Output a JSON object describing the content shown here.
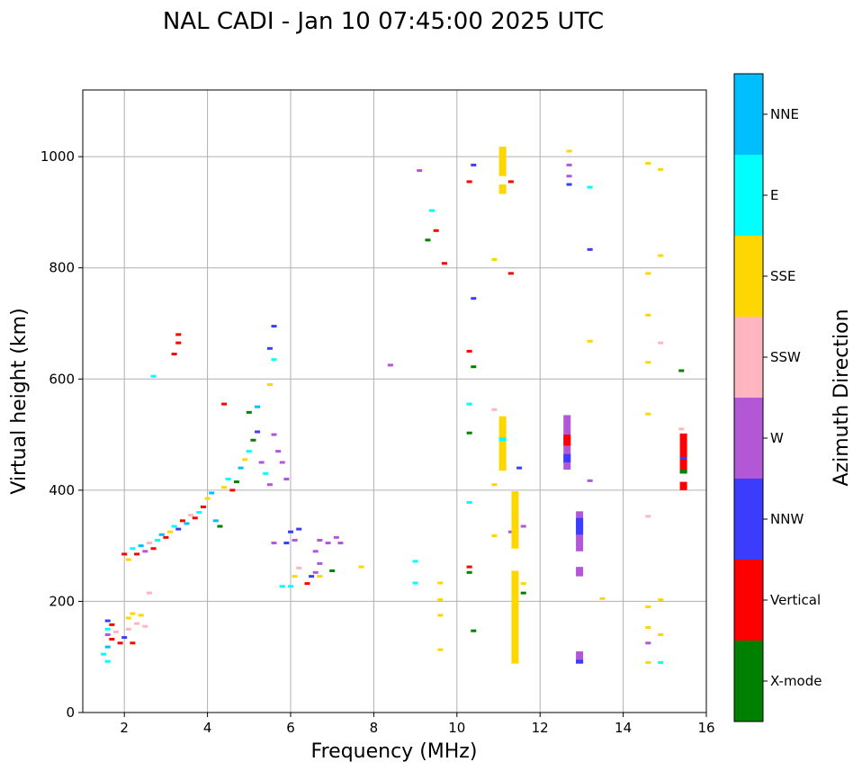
{
  "chart_data": {
    "type": "scatter",
    "title": "NAL CADI - Jan 10 07:45:00 2025 UTC",
    "xlabel": "Frequency (MHz)",
    "ylabel": "Virtual height (km)",
    "xlim": [
      1,
      16
    ],
    "ylim": [
      0,
      1120
    ],
    "xticks": [
      2,
      4,
      6,
      8,
      10,
      12,
      14,
      16
    ],
    "yticks": [
      0,
      200,
      400,
      600,
      800,
      1000
    ],
    "grid": true,
    "colorbar": {
      "title": "Azimuth Direction",
      "categories": [
        {
          "name": "X-mode",
          "color": "#008000"
        },
        {
          "name": "Vertical",
          "color": "#ff0000"
        },
        {
          "name": "NNW",
          "color": "#3c3cff"
        },
        {
          "name": "W",
          "color": "#b258d6"
        },
        {
          "name": "SSW",
          "color": "#ffb6c1"
        },
        {
          "name": "SSE",
          "color": "#ffd700"
        },
        {
          "name": "E",
          "color": "#00ffff"
        },
        {
          "name": "NNE",
          "color": "#00bfff"
        }
      ]
    },
    "points": [
      [
        1.6,
        165,
        "NNW"
      ],
      [
        1.7,
        158,
        "Vertical"
      ],
      [
        1.6,
        150,
        "E"
      ],
      [
        1.8,
        145,
        "SSW"
      ],
      [
        1.6,
        140,
        "W"
      ],
      [
        1.7,
        132,
        "Vertical"
      ],
      [
        1.9,
        125,
        "Vertical"
      ],
      [
        1.6,
        118,
        "NNE"
      ],
      [
        1.5,
        105,
        "E"
      ],
      [
        1.6,
        92,
        "E"
      ],
      [
        2.0,
        135,
        "NNW"
      ],
      [
        2.2,
        125,
        "Vertical"
      ],
      [
        2.1,
        150,
        "SSW"
      ],
      [
        2.3,
        160,
        "SSW"
      ],
      [
        2.5,
        155,
        "SSW"
      ],
      [
        2.1,
        170,
        "SSE"
      ],
      [
        2.2,
        178,
        "SSE"
      ],
      [
        2.4,
        175,
        "SSE"
      ],
      [
        2.6,
        215,
        "SSW"
      ],
      [
        2.0,
        285,
        "Vertical"
      ],
      [
        2.1,
        275,
        "SSE"
      ],
      [
        2.2,
        295,
        "E"
      ],
      [
        2.3,
        285,
        "Vertical"
      ],
      [
        2.4,
        300,
        "NNE"
      ],
      [
        2.5,
        290,
        "W"
      ],
      [
        2.6,
        305,
        "SSW"
      ],
      [
        2.7,
        295,
        "Vertical"
      ],
      [
        2.8,
        310,
        "E"
      ],
      [
        2.9,
        320,
        "NNE"
      ],
      [
        3.0,
        315,
        "Vertical"
      ],
      [
        3.1,
        325,
        "SSE"
      ],
      [
        3.2,
        335,
        "E"
      ],
      [
        3.3,
        330,
        "NNW"
      ],
      [
        3.4,
        345,
        "Vertical"
      ],
      [
        3.5,
        340,
        "NNE"
      ],
      [
        3.6,
        355,
        "SSW"
      ],
      [
        3.7,
        350,
        "Vertical"
      ],
      [
        3.8,
        360,
        "E"
      ],
      [
        2.7,
        605,
        "E"
      ],
      [
        3.3,
        680,
        "Vertical"
      ],
      [
        3.3,
        665,
        "Vertical"
      ],
      [
        3.2,
        645,
        "Vertical"
      ],
      [
        3.9,
        370,
        "Vertical"
      ],
      [
        4.0,
        385,
        "SSE"
      ],
      [
        4.1,
        395,
        "NNE"
      ],
      [
        4.2,
        345,
        "NNE"
      ],
      [
        4.3,
        335,
        "Green"
      ],
      [
        4.4,
        405,
        "SSE"
      ],
      [
        4.5,
        420,
        "E"
      ],
      [
        4.6,
        400,
        "Vertical"
      ],
      [
        4.7,
        415,
        "Green"
      ],
      [
        4.8,
        440,
        "NNE"
      ],
      [
        4.9,
        455,
        "SSE"
      ],
      [
        5.0,
        470,
        "E"
      ],
      [
        5.1,
        490,
        "Green"
      ],
      [
        5.2,
        505,
        "NNW"
      ],
      [
        5.3,
        450,
        "W"
      ],
      [
        5.4,
        430,
        "E"
      ],
      [
        5.5,
        410,
        "W"
      ],
      [
        5.6,
        500,
        "W"
      ],
      [
        5.7,
        470,
        "W"
      ],
      [
        5.8,
        450,
        "W"
      ],
      [
        5.9,
        420,
        "W"
      ],
      [
        4.4,
        555,
        "Vertical"
      ],
      [
        5.0,
        540,
        "Green"
      ],
      [
        5.2,
        550,
        "NNE"
      ],
      [
        5.5,
        590,
        "SSE"
      ],
      [
        5.6,
        695,
        "NNW"
      ],
      [
        5.6,
        635,
        "E"
      ],
      [
        5.5,
        655,
        "NNW"
      ],
      [
        5.6,
        305,
        "W"
      ],
      [
        5.9,
        305,
        "NNW"
      ],
      [
        6.1,
        310,
        "W"
      ],
      [
        6.0,
        325,
        "NNW"
      ],
      [
        6.2,
        330,
        "NNW"
      ],
      [
        5.8,
        227,
        "E"
      ],
      [
        6.0,
        227,
        "E"
      ],
      [
        6.4,
        232,
        "Vertical"
      ],
      [
        6.5,
        245,
        "NNW"
      ],
      [
        6.6,
        252,
        "W"
      ],
      [
        6.7,
        268,
        "W"
      ],
      [
        6.6,
        290,
        "W"
      ],
      [
        6.7,
        310,
        "W"
      ],
      [
        6.9,
        305,
        "W"
      ],
      [
        7.1,
        315,
        "W"
      ],
      [
        7.2,
        305,
        "W"
      ],
      [
        6.2,
        260,
        "SSW"
      ],
      [
        6.1,
        245,
        "SSE"
      ],
      [
        6.7,
        245,
        "SSE"
      ],
      [
        7.0,
        255,
        "Green"
      ],
      [
        7.7,
        262,
        "SSE"
      ],
      [
        8.4,
        625,
        "W"
      ],
      [
        9.1,
        975,
        "W"
      ],
      [
        9.3,
        850,
        "Green"
      ],
      [
        9.4,
        903,
        "E"
      ],
      [
        9.5,
        867,
        "Vertical"
      ],
      [
        9.7,
        808,
        "Vertical"
      ],
      [
        9.0,
        272,
        "E"
      ],
      [
        9.0,
        233,
        "E"
      ],
      [
        9.6,
        233,
        "SSE"
      ],
      [
        9.6,
        203,
        "SSE"
      ],
      [
        9.6,
        175,
        "SSE"
      ],
      [
        9.6,
        113,
        "SSE"
      ],
      [
        10.3,
        955,
        "Vertical"
      ],
      [
        10.4,
        985,
        "NNW"
      ],
      [
        10.4,
        745,
        "NNW"
      ],
      [
        10.3,
        650,
        "Vertical"
      ],
      [
        10.4,
        622,
        "Green"
      ],
      [
        10.3,
        555,
        "E"
      ],
      [
        10.3,
        503,
        "Green"
      ],
      [
        10.3,
        378,
        "E"
      ],
      [
        10.3,
        262,
        "Vertical"
      ],
      [
        10.3,
        252,
        "Green"
      ],
      [
        10.4,
        147,
        "Green"
      ],
      [
        10.9,
        815,
        "SSE"
      ],
      [
        10.9,
        545,
        "SSW"
      ],
      [
        10.9,
        410,
        "SSE"
      ],
      [
        10.9,
        318,
        "SSE"
      ],
      [
        11.3,
        955,
        "Vertical"
      ],
      [
        11.3,
        790,
        "Vertical"
      ],
      [
        11.5,
        440,
        "NNW"
      ],
      [
        11.6,
        335,
        "W"
      ],
      [
        11.3,
        325,
        "W"
      ],
      [
        11.6,
        215,
        "Green"
      ],
      [
        11.6,
        232,
        "SSE"
      ],
      [
        12.7,
        1010,
        "SSE"
      ],
      [
        12.7,
        950,
        "NNW"
      ],
      [
        12.7,
        985,
        "W"
      ],
      [
        12.7,
        965,
        "W"
      ],
      [
        13.2,
        945,
        "E"
      ],
      [
        13.2,
        833,
        "NNW"
      ],
      [
        13.2,
        668,
        "SSE"
      ],
      [
        13.2,
        417,
        "W"
      ],
      [
        13.5,
        205,
        "SSE"
      ],
      [
        14.6,
        988,
        "SSE"
      ],
      [
        14.9,
        977,
        "SSE"
      ],
      [
        14.9,
        822,
        "SSE"
      ],
      [
        14.6,
        790,
        "SSE"
      ],
      [
        14.6,
        715,
        "SSE"
      ],
      [
        14.9,
        665,
        "SSW"
      ],
      [
        14.6,
        630,
        "SSE"
      ],
      [
        14.6,
        537,
        "SSE"
      ],
      [
        14.6,
        353,
        "SSW"
      ],
      [
        14.9,
        203,
        "SSE"
      ],
      [
        14.6,
        190,
        "SSE"
      ],
      [
        14.6,
        153,
        "SSE"
      ],
      [
        14.9,
        140,
        "SSE"
      ],
      [
        14.6,
        125,
        "W"
      ],
      [
        14.6,
        90,
        "SSE"
      ],
      [
        14.9,
        90,
        "E"
      ],
      [
        15.4,
        615,
        "Green"
      ],
      [
        15.4,
        510,
        "SSW"
      ]
    ],
    "bars": [
      {
        "x": 11.1,
        "y0": 965,
        "y1": 1018,
        "color": "SSE"
      },
      {
        "x": 11.1,
        "y0": 933,
        "y1": 950,
        "color": "SSE"
      },
      {
        "x": 11.1,
        "y0": 435,
        "y1": 533,
        "color": "SSE"
      },
      {
        "x": 11.1,
        "y0": 488,
        "y1": 495,
        "color": "E"
      },
      {
        "x": 11.4,
        "y0": 295,
        "y1": 398,
        "color": "SSE"
      },
      {
        "x": 11.4,
        "y0": 88,
        "y1": 255,
        "color": "SSE"
      },
      {
        "x": 12.65,
        "y0": 437,
        "y1": 535,
        "color": "W"
      },
      {
        "x": 12.65,
        "y0": 480,
        "y1": 500,
        "color": "Vertical"
      },
      {
        "x": 12.65,
        "y0": 450,
        "y1": 465,
        "color": "NNW"
      },
      {
        "x": 12.95,
        "y0": 290,
        "y1": 362,
        "color": "W"
      },
      {
        "x": 12.95,
        "y0": 320,
        "y1": 350,
        "color": "NNW"
      },
      {
        "x": 12.95,
        "y0": 245,
        "y1": 262,
        "color": "W"
      },
      {
        "x": 12.95,
        "y0": 88,
        "y1": 110,
        "color": "W"
      },
      {
        "x": 12.95,
        "y0": 88,
        "y1": 95,
        "color": "NNW"
      },
      {
        "x": 15.45,
        "y0": 430,
        "y1": 502,
        "color": "Vertical"
      },
      {
        "x": 15.45,
        "y0": 400,
        "y1": 415,
        "color": "Vertical"
      },
      {
        "x": 15.45,
        "y0": 430,
        "y1": 437,
        "color": "Green"
      },
      {
        "x": 15.45,
        "y0": 455,
        "y1": 460,
        "color": "NNW"
      }
    ]
  }
}
